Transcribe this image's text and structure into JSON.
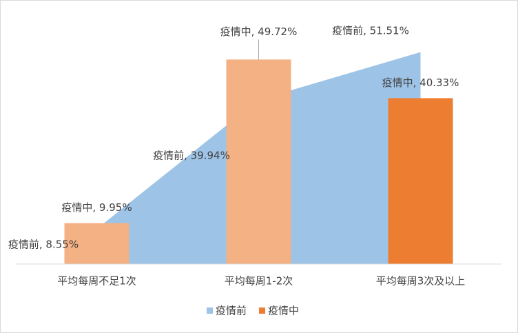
{
  "chart_data": {
    "type": "area-bar",
    "categories": [
      "平均每周不足1次",
      "平均每周1-2次",
      "平均每周3次及以上"
    ],
    "ylim": [
      0,
      60
    ],
    "series": [
      {
        "name": "疫情前",
        "type": "area",
        "color": "#9DC3E6",
        "values": [
          8.55,
          39.94,
          51.51
        ],
        "value_labels": [
          "疫情前, 8.55%",
          "疫情前, 39.94%",
          "疫情前, 51.51%"
        ]
      },
      {
        "name": "疫情中",
        "type": "bar",
        "color": "#ED7D31",
        "colors": [
          "#F4B183",
          "#F4B183",
          "#ED7D31"
        ],
        "values": [
          9.95,
          49.72,
          40.33
        ],
        "value_labels": [
          "疫情中, 9.95%",
          "疫情中, 49.72%",
          "疫情中, 40.33%"
        ]
      }
    ],
    "legend": "bottom"
  }
}
